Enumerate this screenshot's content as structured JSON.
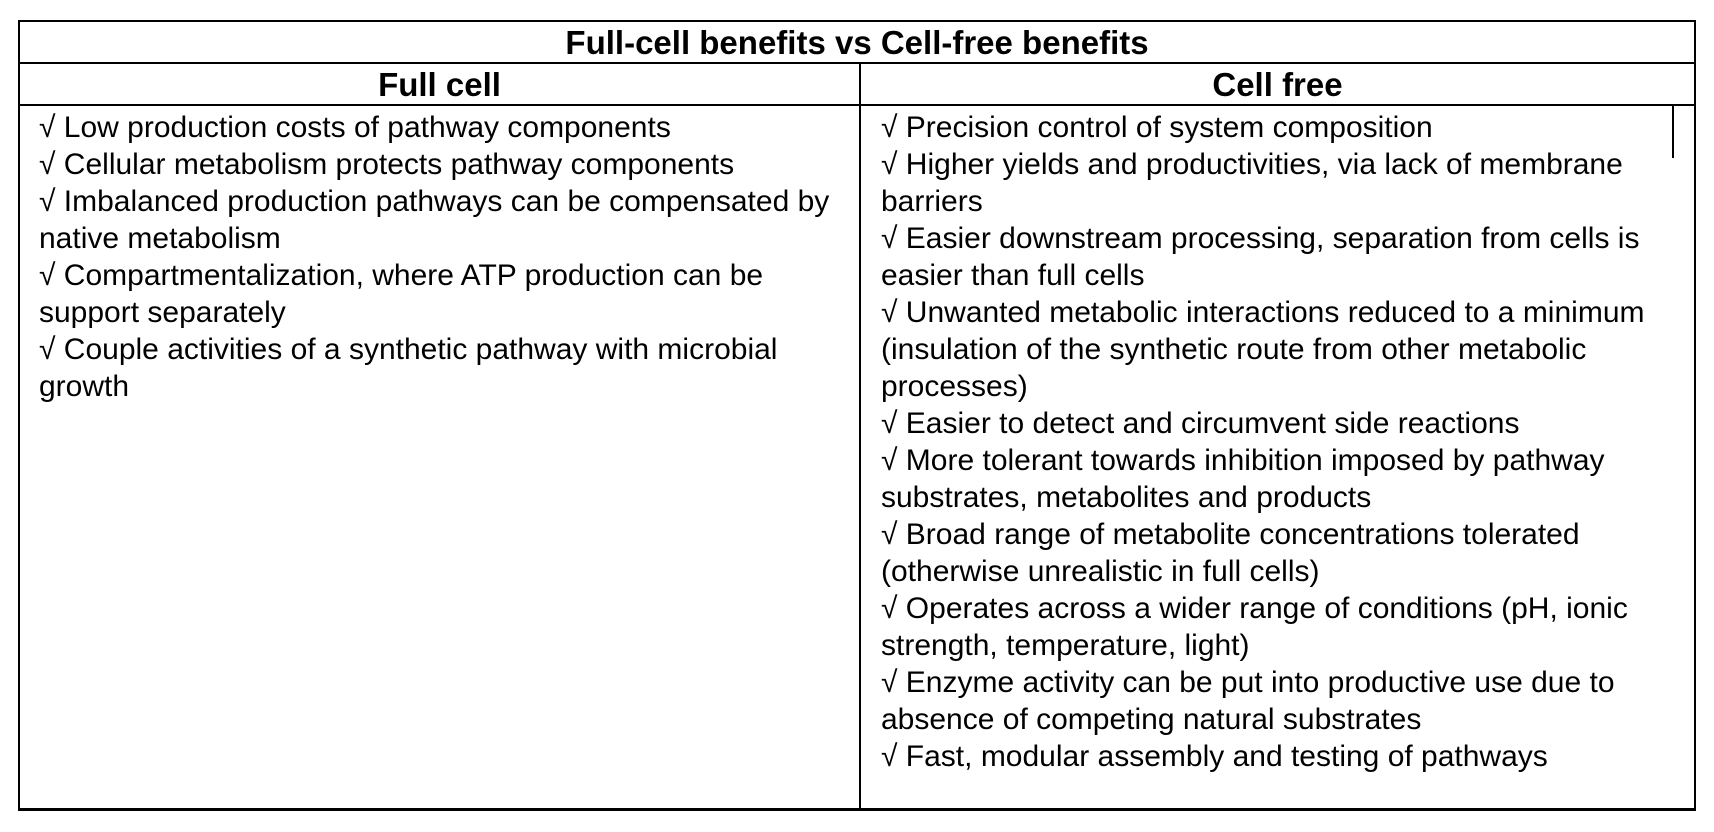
{
  "table": {
    "title": "Full-cell benefits vs Cell-free benefits",
    "headers": {
      "full_cell": "Full cell",
      "cell_free": "Cell free"
    },
    "full_cell_items": [
      "√ Low production costs of pathway components",
      "√ Cellular metabolism protects pathway components",
      "√ Imbalanced production pathways can be compensated by native metabolism",
      "√ Compartmentalization, where ATP production can be support separately",
      "√ Couple activities of a synthetic pathway with microbial growth"
    ],
    "cell_free_items": [
      "√ Precision control of system composition",
      "√ Higher yields and productivities, via lack of membrane barriers",
      "√ Easier downstream processing, separation from cells is easier than full cells",
      "√ Unwanted metabolic interactions reduced to a minimum (insulation of the synthetic route from other metabolic processes)",
      "√ Easier to detect and circumvent side reactions",
      "√ More tolerant towards inhibition imposed by pathway substrates, metabolites and products",
      "√ Broad range of metabolite concentrations tolerated (otherwise unrealistic in full cells)",
      "√ Operates across a wider range of conditions (pH, ionic strength, temperature, light)",
      "√ Enzyme activity can be put into productive use due to absence of competing natural substrates",
      "√ Fast, modular assembly and testing of pathways"
    ]
  }
}
